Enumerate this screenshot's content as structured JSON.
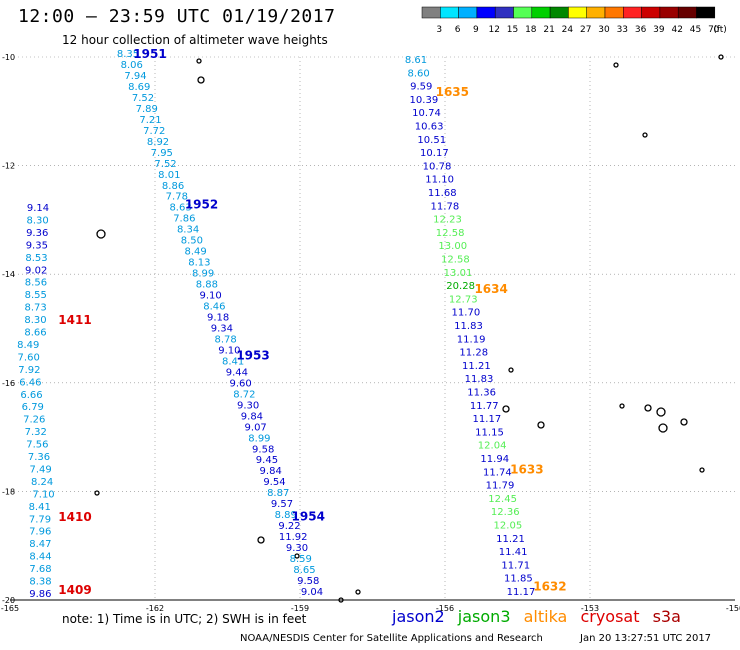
{
  "title": "12:00 – 23:59 UTC 01/19/2017",
  "subtitle": "12 hour collection of altimeter wave heights",
  "colorbar": {
    "unit": "(ft)",
    "labels": [
      "3",
      "6",
      "9",
      "12",
      "15",
      "18",
      "21",
      "24",
      "27",
      "30",
      "33",
      "36",
      "39",
      "42",
      "45",
      "70"
    ],
    "colors": [
      "#808080",
      "#00e5ff",
      "#00b0ff",
      "#0000ff",
      "#3030c0",
      "#55ff55",
      "#00d000",
      "#008800",
      "#ffff00",
      "#ffb000",
      "#ff7700",
      "#ff2222",
      "#cc0000",
      "#990000",
      "#660000",
      "#000000"
    ]
  },
  "note": "note: 1) Time is in UTC; 2) SWH is in feet",
  "legend": [
    {
      "name": "jason2",
      "color": "#0000cc"
    },
    {
      "name": "jason3",
      "color": "#00aa00"
    },
    {
      "name": "altika",
      "color": "#ff8c00"
    },
    {
      "name": "cryosat",
      "color": "#dd0000"
    },
    {
      "name": "s3a",
      "color": "#aa0000"
    }
  ],
  "credit": "NOAA/NESDIS Center for Satellite Applications and Research",
  "timestamp": "Jan 20 13:27:51 UTC 2017",
  "map": {
    "lon_range": [
      -165,
      -150
    ],
    "lat_range": [
      -20,
      -10
    ],
    "lon_ticks": [
      "-165",
      "-162",
      "-159",
      "-156",
      "-153",
      "-150"
    ],
    "lat_ticks": [
      "-10",
      "-12",
      "-14",
      "-16",
      "-18",
      "-20"
    ]
  },
  "chart_data": {
    "type": "scatter",
    "tracks": [
      {
        "satellite": "cryosat",
        "times": [
          "1411",
          "1410",
          "1409"
        ],
        "values": [
          9.14,
          8.3,
          9.36,
          9.35,
          8.53,
          9.02,
          8.56,
          8.55,
          8.73,
          8.3,
          8.66,
          8.49,
          7.6,
          7.92,
          6.46,
          6.66,
          6.79,
          7.26,
          7.32,
          7.56,
          7.36,
          7.49,
          8.24,
          7.1,
          8.41,
          7.79,
          7.96,
          8.47,
          8.44,
          7.68,
          8.38,
          9.86
        ]
      },
      {
        "satellite": "jason2",
        "times": [
          "1951",
          "1952",
          "1953",
          "1954"
        ],
        "values": [
          8.35,
          8.06,
          7.94,
          8.69,
          7.52,
          7.89,
          7.21,
          7.72,
          8.92,
          7.95,
          7.52,
          8.01,
          8.86,
          7.78,
          8.63,
          7.86,
          8.34,
          8.5,
          8.49,
          8.13,
          8.99,
          8.88,
          9.1,
          8.46,
          9.18,
          9.34,
          8.78,
          9.1,
          8.41,
          9.44,
          9.6,
          8.72,
          9.3,
          9.84,
          9.07,
          8.99,
          9.58,
          9.45,
          9.84,
          9.54,
          8.87,
          9.57,
          8.89,
          9.22,
          11.92,
          9.3,
          8.59,
          8.65,
          9.58,
          9.04
        ]
      },
      {
        "satellite": "altika",
        "times": [
          "1635",
          "1634",
          "1633",
          "1632"
        ],
        "values": [
          8.61,
          8.6,
          9.59,
          10.39,
          10.74,
          10.63,
          10.51,
          10.17,
          10.78,
          11.1,
          11.68,
          11.78,
          12.23,
          12.58,
          13.0,
          12.58,
          13.01,
          20.28,
          12.73,
          11.7,
          11.83,
          11.19,
          11.28,
          11.21,
          11.83,
          11.36,
          11.77,
          11.17,
          11.15,
          12.04,
          11.94,
          11.74,
          11.79,
          12.45,
          12.36,
          12.05,
          11.21,
          11.41,
          11.71,
          11.85,
          11.17
        ]
      }
    ]
  }
}
